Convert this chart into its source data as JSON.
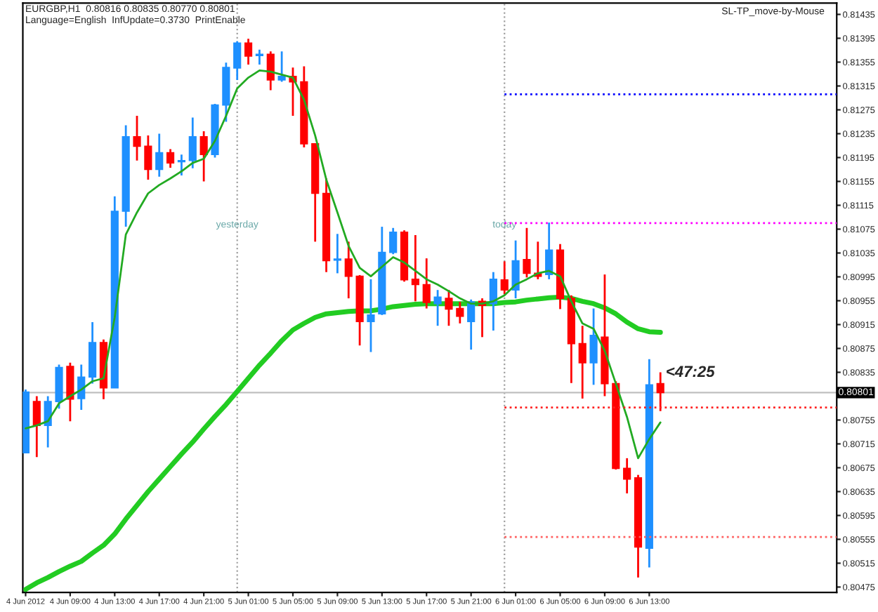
{
  "chart_data": {
    "type": "candlestick",
    "x": [
      "2012-06-04T05:00",
      "2012-06-04T06:00",
      "2012-06-04T07:00",
      "2012-06-04T08:00",
      "2012-06-04T09:00",
      "2012-06-04T10:00",
      "2012-06-04T11:00",
      "2012-06-04T12:00",
      "2012-06-04T13:00",
      "2012-06-04T14:00",
      "2012-06-04T15:00",
      "2012-06-04T16:00",
      "2012-06-04T17:00",
      "2012-06-04T18:00",
      "2012-06-04T19:00",
      "2012-06-04T20:00",
      "2012-06-04T21:00",
      "2012-06-04T22:00",
      "2012-06-04T23:00",
      "2012-06-05T00:00",
      "2012-06-05T01:00",
      "2012-06-05T02:00",
      "2012-06-05T03:00",
      "2012-06-05T04:00",
      "2012-06-05T05:00",
      "2012-06-05T06:00",
      "2012-06-05T07:00",
      "2012-06-05T08:00",
      "2012-06-05T09:00",
      "2012-06-05T10:00",
      "2012-06-05T11:00",
      "2012-06-05T12:00",
      "2012-06-05T13:00",
      "2012-06-05T14:00",
      "2012-06-05T15:00",
      "2012-06-05T16:00",
      "2012-06-05T17:00",
      "2012-06-05T18:00",
      "2012-06-05T19:00",
      "2012-06-05T20:00",
      "2012-06-05T21:00",
      "2012-06-05T22:00",
      "2012-06-05T23:00",
      "2012-06-06T00:00",
      "2012-06-06T01:00",
      "2012-06-06T02:00",
      "2012-06-06T03:00",
      "2012-06-06T04:00",
      "2012-06-06T05:00",
      "2012-06-06T06:00",
      "2012-06-06T07:00",
      "2012-06-06T08:00",
      "2012-06-06T09:00",
      "2012-06-06T10:00",
      "2012-06-06T11:00",
      "2012-06-06T12:00",
      "2012-06-06T13:00",
      "2012-06-06T14:00"
    ],
    "ohlc": [
      [
        0.807,
        0.80806,
        0.807,
        0.80802
      ],
      [
        0.80786,
        0.80795,
        0.80693,
        0.80746
      ],
      [
        0.80746,
        0.80795,
        0.80709,
        0.80786
      ],
      [
        0.80786,
        0.80848,
        0.80774,
        0.80843
      ],
      [
        0.80845,
        0.80851,
        0.80753,
        0.8079
      ],
      [
        0.80791,
        0.80848,
        0.80772,
        0.80827
      ],
      [
        0.80827,
        0.80919,
        0.80816,
        0.80885
      ],
      [
        0.80885,
        0.8089,
        0.8079,
        0.80809
      ],
      [
        0.80809,
        0.8113,
        0.80809,
        0.81105
      ],
      [
        0.81105,
        0.81249,
        0.81079,
        0.8123
      ],
      [
        0.8123,
        0.81265,
        0.8119,
        0.81214
      ],
      [
        0.81214,
        0.81232,
        0.81158,
        0.81175
      ],
      [
        0.81175,
        0.81235,
        0.81163,
        0.81203
      ],
      [
        0.81203,
        0.81209,
        0.81178,
        0.81186
      ],
      [
        0.81188,
        0.812,
        0.81165,
        0.8119
      ],
      [
        0.8119,
        0.81262,
        0.81177,
        0.8123
      ],
      [
        0.8123,
        0.81239,
        0.81155,
        0.812
      ],
      [
        0.812,
        0.81285,
        0.81195,
        0.81283
      ],
      [
        0.81283,
        0.81354,
        0.81255,
        0.81346
      ],
      [
        0.81345,
        0.8139,
        0.81325,
        0.81387
      ],
      [
        0.81387,
        0.81394,
        0.81351,
        0.81365
      ],
      [
        0.81366,
        0.81376,
        0.81351,
        0.81368
      ],
      [
        0.81368,
        0.81373,
        0.81308,
        0.81325
      ],
      [
        0.81325,
        0.81373,
        0.81322,
        0.81331
      ],
      [
        0.81331,
        0.81346,
        0.81265,
        0.81322
      ],
      [
        0.81322,
        0.81348,
        0.81212,
        0.81218
      ],
      [
        0.81218,
        0.81218,
        0.81054,
        0.81135
      ],
      [
        0.81135,
        0.8116,
        0.81003,
        0.81022
      ],
      [
        0.81023,
        0.81067,
        0.81001,
        0.81025
      ],
      [
        0.81025,
        0.81054,
        0.80959,
        0.80996
      ],
      [
        0.80996,
        0.80998,
        0.8088,
        0.8092
      ],
      [
        0.8092,
        0.80991,
        0.80869,
        0.80931
      ],
      [
        0.80933,
        0.81079,
        0.80931,
        0.81036
      ],
      [
        0.81036,
        0.81077,
        0.81033,
        0.8107
      ],
      [
        0.8107,
        0.81073,
        0.80987,
        0.8099
      ],
      [
        0.80991,
        0.81065,
        0.80954,
        0.80982
      ],
      [
        0.80982,
        0.81026,
        0.80942,
        0.80952
      ],
      [
        0.8095,
        0.80973,
        0.80913,
        0.80961
      ],
      [
        0.80959,
        0.80973,
        0.80913,
        0.80941
      ],
      [
        0.80942,
        0.80953,
        0.80917,
        0.80929
      ],
      [
        0.8092,
        0.80957,
        0.80873,
        0.80953
      ],
      [
        0.80954,
        0.80959,
        0.80894,
        0.80947
      ],
      [
        0.8095,
        0.81003,
        0.80905,
        0.80991
      ],
      [
        0.8099,
        0.81021,
        0.80966,
        0.80973
      ],
      [
        0.80973,
        0.81056,
        0.80959,
        0.81022
      ],
      [
        0.81024,
        0.81077,
        0.80994,
        0.81001
      ],
      [
        0.81001,
        0.81054,
        0.80991,
        0.80996
      ],
      [
        0.80999,
        0.81086,
        0.80991,
        0.8104
      ],
      [
        0.8104,
        0.8105,
        0.80941,
        0.80959
      ],
      [
        0.80959,
        0.80964,
        0.80817,
        0.80883
      ],
      [
        0.80883,
        0.80913,
        0.80791,
        0.80851
      ],
      [
        0.80851,
        0.80942,
        0.80814,
        0.80897
      ],
      [
        0.80894,
        0.80999,
        0.80795,
        0.80816
      ],
      [
        0.80816,
        0.8082,
        0.80672,
        0.80674
      ],
      [
        0.80674,
        0.80691,
        0.80632,
        0.80656
      ],
      [
        0.80658,
        0.80663,
        0.80491,
        0.80542
      ],
      [
        0.8054,
        0.80857,
        0.80508,
        0.80814
      ],
      [
        0.80816,
        0.80835,
        0.8077,
        0.80801
      ]
    ],
    "colors": [
      "#1e90ff",
      "#ff0000",
      "#1e90ff",
      "#1e90ff",
      "#ff0000",
      "#1e90ff",
      "#1e90ff",
      "#ff0000",
      "#1e90ff",
      "#1e90ff",
      "#ff0000",
      "#ff0000",
      "#1e90ff",
      "#ff0000",
      "#1e90ff",
      "#1e90ff",
      "#ff0000",
      "#1e90ff",
      "#1e90ff",
      "#1e90ff",
      "#ff0000",
      "#1e90ff",
      "#ff0000",
      "#1e90ff",
      "#ff0000",
      "#ff0000",
      "#ff0000",
      "#ff0000",
      "#1e90ff",
      "#ff0000",
      "#ff0000",
      "#1e90ff",
      "#1e90ff",
      "#1e90ff",
      "#ff0000",
      "#ff0000",
      "#ff0000",
      "#1e90ff",
      "#ff0000",
      "#ff0000",
      "#1e90ff",
      "#ff0000",
      "#1e90ff",
      "#ff0000",
      "#1e90ff",
      "#ff0000",
      "#ff0000",
      "#1e90ff",
      "#ff0000",
      "#ff0000",
      "#ff0000",
      "#1e90ff",
      "#ff0000",
      "#ff0000",
      "#ff0000",
      "#ff0000",
      "#1e90ff",
      "#ff0000"
    ],
    "series": [
      {
        "type": "line",
        "color": "#22aa22",
        "line_style": "solid",
        "values": [
          0.80741,
          0.80746,
          0.80753,
          0.80783,
          0.80795,
          0.80806,
          0.8082,
          0.80825,
          0.80927,
          0.81066,
          0.81103,
          0.81135,
          0.81149,
          0.8116,
          0.81172,
          0.81186,
          0.81193,
          0.81223,
          0.81265,
          0.81311,
          0.81329,
          0.81341,
          0.81339,
          0.81334,
          0.81329,
          0.81292,
          0.81232,
          0.81158,
          0.81103,
          0.81047,
          0.8101,
          0.80996,
          0.81012,
          0.81028,
          0.81019,
          0.81005,
          0.80991,
          0.80982,
          0.80971,
          0.80959,
          0.8095,
          0.8095,
          0.80954,
          0.80964,
          0.80982,
          0.80991,
          0.81001,
          0.81005,
          0.80996,
          0.80954,
          0.80917,
          0.80908,
          0.80871,
          0.80816,
          0.8076,
          0.80691,
          0.80723,
          0.80751
        ]
      },
      {
        "type": "line",
        "color": "#22cc22",
        "line_style": "solid",
        "values": [
          0.80471,
          0.80482,
          0.80491,
          0.80501,
          0.8051,
          0.80518,
          0.80532,
          0.80545,
          0.80564,
          0.80589,
          0.80612,
          0.80635,
          0.80656,
          0.80677,
          0.80698,
          0.80718,
          0.8074,
          0.80761,
          0.80781,
          0.80803,
          0.80825,
          0.80847,
          0.80867,
          0.80888,
          0.80906,
          0.80917,
          0.80927,
          0.80933,
          0.80935,
          0.80937,
          0.80938,
          0.80938,
          0.80941,
          0.80945,
          0.80947,
          0.80949,
          0.8095,
          0.8095,
          0.8095,
          0.8095,
          0.8095,
          0.8095,
          0.8095,
          0.80952,
          0.80953,
          0.80956,
          0.80958,
          0.8096,
          0.80961,
          0.80959,
          0.80954,
          0.8095,
          0.80943,
          0.80933,
          0.80919,
          0.80908,
          0.80903,
          0.80902
        ]
      },
      {
        "type": "line",
        "color": "#0000ff",
        "line_style": "dotted",
        "x": [
          "2012-06-06T00:00",
          "2012-06-07T05:50"
        ],
        "values": [
          0.81301,
          0.81301
        ]
      },
      {
        "type": "line",
        "color": "#ff00ff",
        "line_style": "dotted",
        "x": [
          "2012-06-06T00:00",
          "2012-06-07T05:50"
        ],
        "values": [
          0.81085,
          0.81085
        ]
      },
      {
        "type": "line",
        "color": "#ff2020",
        "line_style": "dotted",
        "x": [
          "2012-06-06T00:00",
          "2012-06-07T05:50"
        ],
        "values": [
          0.80776,
          0.80776
        ]
      },
      {
        "type": "line",
        "color": "#ff6060",
        "line_style": "dotted",
        "x": [
          "2012-06-06T00:00",
          "2012-06-07T05:50"
        ],
        "values": [
          0.80559,
          0.80559
        ]
      }
    ],
    "ref_lines": [
      {
        "axis": "x",
        "value": "2012-06-05T00:00",
        "label": "yesterday",
        "color": "#a0a0a0",
        "line_style": "dotted"
      },
      {
        "axis": "x",
        "value": "2012-06-06T00:00",
        "label": "today",
        "color": "#a0a0a0",
        "line_style": "dotted"
      },
      {
        "axis": "y",
        "value": 0.80801,
        "label": "0.80801",
        "color": "#c0c0c0",
        "line_style": "solid"
      }
    ],
    "annotations": [
      "EURGBP,H1  0.80816 0.80835 0.80770 0.80801",
      "Language=English  InfUpdate=0.3730  PrintEnable",
      "SL-TP_move-by-Mouse",
      "<47:25"
    ],
    "xlim": [
      "2012-06-04T04:45",
      "2012-06-07T05:50"
    ],
    "xticks": [
      {
        "value": "2012-06-04T05:00",
        "label": "4 Jun 2012"
      },
      {
        "value": "2012-06-04T09:00",
        "label": "4 Jun 09:00"
      },
      {
        "value": "2012-06-04T13:00",
        "label": "4 Jun 13:00"
      },
      {
        "value": "2012-06-04T17:00",
        "label": "4 Jun 17:00"
      },
      {
        "value": "2012-06-04T21:00",
        "label": "4 Jun 21:00"
      },
      {
        "value": "2012-06-05T01:00",
        "label": "5 Jun 01:00"
      },
      {
        "value": "2012-06-05T05:00",
        "label": "5 Jun 05:00"
      },
      {
        "value": "2012-06-05T09:00",
        "label": "5 Jun 09:00"
      },
      {
        "value": "2012-06-05T13:00",
        "label": "5 Jun 13:00"
      },
      {
        "value": "2012-06-05T17:00",
        "label": "5 Jun 17:00"
      },
      {
        "value": "2012-06-05T21:00",
        "label": "5 Jun 21:00"
      },
      {
        "value": "2012-06-06T01:00",
        "label": "6 Jun 01:00"
      },
      {
        "value": "2012-06-06T05:00",
        "label": "6 Jun 05:00"
      },
      {
        "value": "2012-06-06T09:00",
        "label": "6 Jun 09:00"
      },
      {
        "value": "2012-06-06T13:00",
        "label": "6 Jun 13:00"
      }
    ],
    "ylim": [
      0.80466,
      0.81454
    ],
    "yticks": [
      0.81435,
      0.81395,
      0.81355,
      0.81315,
      0.81275,
      0.81235,
      0.81195,
      0.81155,
      0.81115,
      0.81075,
      0.81035,
      0.80995,
      0.80955,
      0.80915,
      0.80875,
      0.80835,
      0.80755,
      0.80715,
      0.80675,
      0.80635,
      0.80595,
      0.80555,
      0.80515,
      0.80475
    ],
    "grid": false,
    "legend": false
  }
}
